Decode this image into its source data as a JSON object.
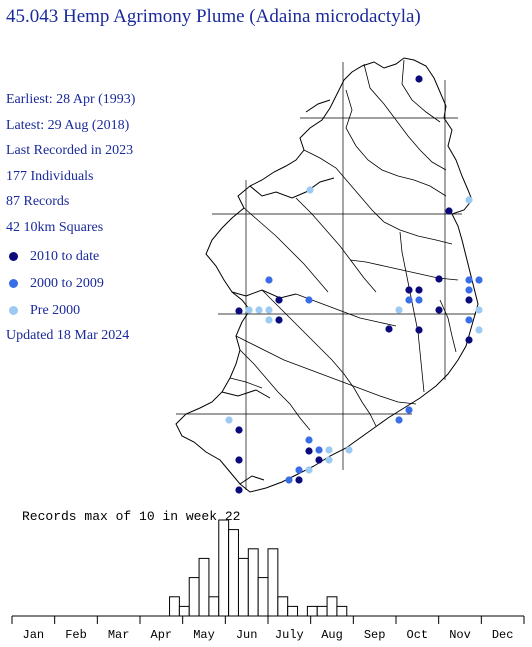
{
  "title": "45.043 Hemp Agrimony Plume (Adaina microdactyla)",
  "stats": {
    "earliest": "Earliest: 28 Apr (1993)",
    "latest": "Latest: 29 Aug (2018)",
    "last_recorded": "Last Recorded in 2023",
    "individuals": "177 Individuals",
    "records": "87 Records",
    "squares": "42 10km Squares"
  },
  "legend": [
    {
      "label": "2010 to date",
      "color": "#0a0a7a"
    },
    {
      "label": "2000 to 2009",
      "color": "#3a6ee6"
    },
    {
      "label": "Pre 2000",
      "color": "#9ccaf2"
    }
  ],
  "updated": "Updated 18 Mar 2024",
  "histogram": {
    "label": "Records max of 10 in week 22",
    "max": 10,
    "max_week": 22,
    "months": [
      "Jan",
      "Feb",
      "Mar",
      "Apr",
      "May",
      "Jun",
      "July",
      "Aug",
      "Sep",
      "Oct",
      "Nov",
      "Dec"
    ],
    "weekly_counts": [
      0,
      0,
      0,
      0,
      0,
      0,
      0,
      0,
      0,
      0,
      0,
      0,
      0,
      0,
      0,
      0,
      2,
      1,
      4,
      6,
      2,
      10,
      9,
      6,
      7,
      4,
      7,
      2,
      1,
      0,
      1,
      1,
      2,
      1,
      0,
      0,
      0,
      0,
      0,
      0,
      0,
      0,
      0,
      0,
      0,
      0,
      0,
      0,
      0,
      0,
      0,
      0
    ]
  }
}
